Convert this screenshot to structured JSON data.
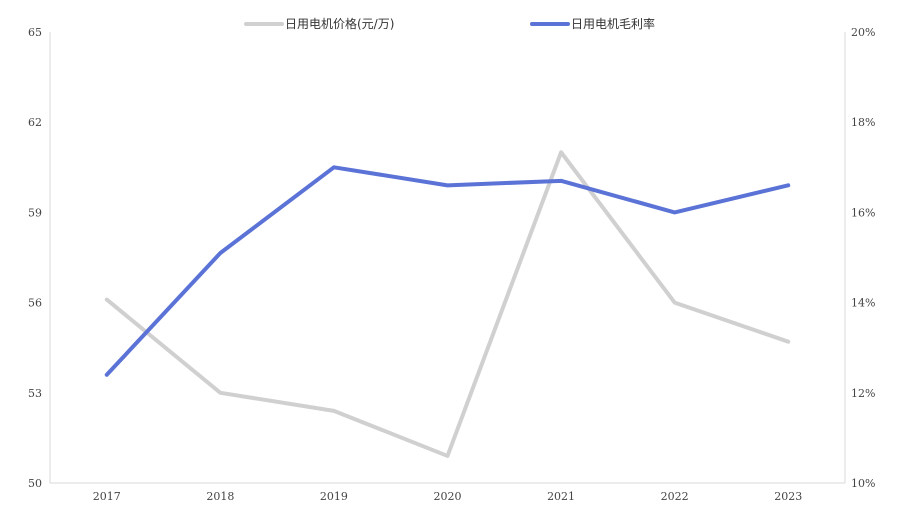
{
  "chart_data": {
    "type": "line",
    "title": "",
    "categories": [
      "2017",
      "2018",
      "2019",
      "2020",
      "2021",
      "2022",
      "2023"
    ],
    "series": [
      {
        "name": "日用电机价格(元/万)",
        "axis": "left",
        "color": "#d0d0d0",
        "values": [
          56.1,
          53.0,
          52.4,
          50.9,
          61.0,
          56.0,
          54.7
        ]
      },
      {
        "name": "日用电机毛利率",
        "axis": "right",
        "color": "#5b73d6",
        "values": [
          12.4,
          15.1,
          17.0,
          16.6,
          16.7,
          16.0,
          16.6
        ]
      }
    ],
    "left_axis": {
      "range": [
        50,
        65
      ],
      "ticks": [
        "50",
        "53",
        "56",
        "59",
        "62",
        "65"
      ]
    },
    "right_axis": {
      "range": [
        10,
        20
      ],
      "ticks": [
        "10%",
        "12%",
        "14%",
        "16%",
        "18%",
        "20%"
      ]
    },
    "legend_position": "top",
    "grid": false
  }
}
